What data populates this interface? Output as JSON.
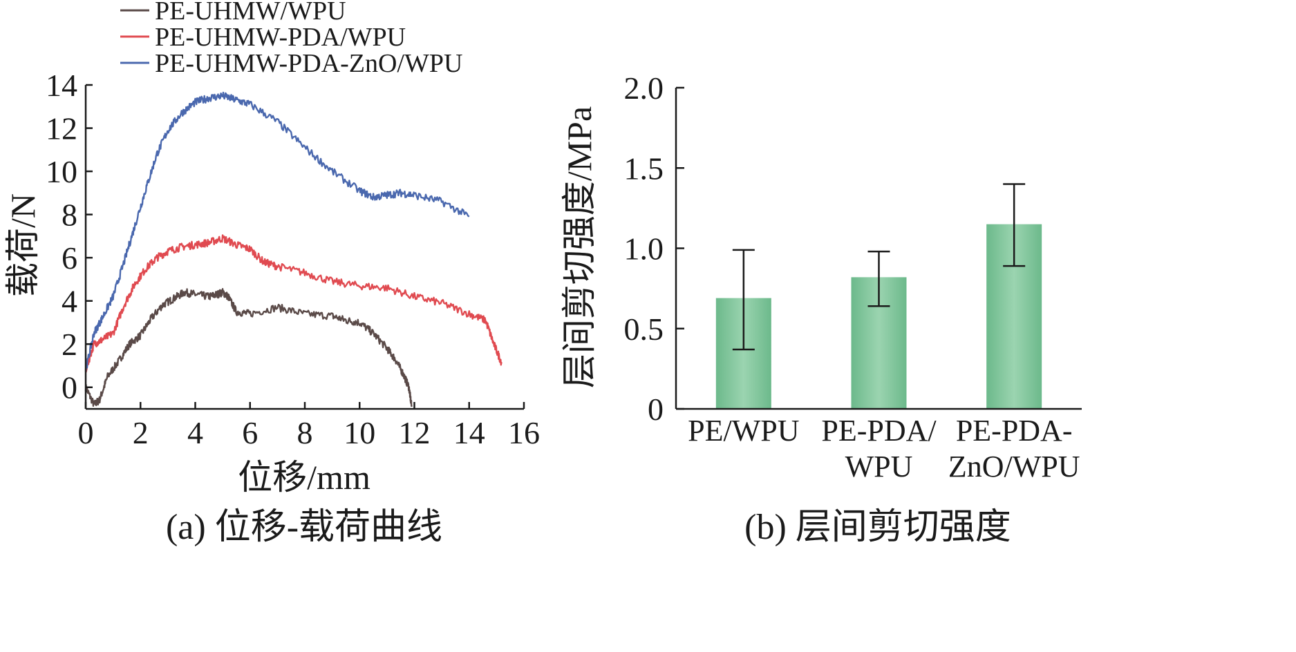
{
  "chart_data": [
    {
      "type": "line",
      "caption": "(a) 位移-载荷曲线",
      "xlabel": "位移/mm",
      "ylabel": "载荷/N",
      "xlim": [
        0,
        16
      ],
      "ylim": [
        -1,
        14
      ],
      "xticks": [
        "0",
        "2",
        "4",
        "6",
        "8",
        "10",
        "12",
        "14",
        "16"
      ],
      "yticks": [
        "0",
        "2",
        "4",
        "6",
        "8",
        "10",
        "12",
        "14"
      ],
      "legend_position": "top-left",
      "series": [
        {
          "name": "PE-UHMW/WPU",
          "color": "#5a4a48",
          "x": [
            0,
            0.3,
            0.5,
            0.8,
            1.2,
            1.6,
            2.0,
            2.4,
            2.8,
            3.2,
            3.6,
            4.0,
            4.5,
            4.8,
            5.0,
            5.2,
            5.5,
            6.0,
            7.0,
            8.0,
            9.0,
            9.5,
            10.0,
            10.5,
            11.0,
            11.3,
            11.6,
            11.8,
            11.9
          ],
          "y": [
            0,
            -0.8,
            -0.6,
            0.5,
            1.2,
            2.0,
            2.4,
            3.2,
            3.8,
            4.1,
            4.4,
            4.3,
            4.2,
            4.3,
            4.4,
            4.2,
            3.5,
            3.4,
            3.7,
            3.4,
            3.3,
            3.1,
            3.0,
            2.5,
            1.8,
            1.3,
            0.6,
            0.0,
            -0.9
          ]
        },
        {
          "name": "PE-UHMW-PDA/WPU",
          "color": "#e04a50",
          "x": [
            0,
            0.3,
            0.6,
            1.0,
            1.4,
            1.8,
            2.2,
            2.6,
            3.0,
            3.5,
            4.0,
            4.5,
            5.0,
            5.5,
            6.0,
            6.5,
            7.0,
            8.0,
            9.0,
            10.0,
            11.0,
            12.0,
            13.0,
            14.0,
            14.6,
            14.9,
            15.2
          ],
          "y": [
            0.8,
            2.0,
            2.2,
            2.5,
            3.8,
            4.8,
            5.5,
            6.0,
            6.3,
            6.5,
            6.6,
            6.7,
            6.9,
            6.6,
            6.4,
            5.8,
            5.6,
            5.3,
            4.9,
            4.7,
            4.6,
            4.2,
            3.9,
            3.4,
            3.1,
            2.0,
            1.1
          ]
        },
        {
          "name": "PE-UHMW-PDA-ZnO/WPU",
          "color": "#4a68ae",
          "x": [
            0,
            0.3,
            0.6,
            1.0,
            1.4,
            1.8,
            2.2,
            2.6,
            3.0,
            3.5,
            4.0,
            4.5,
            5.0,
            5.5,
            6.0,
            7.0,
            8.0,
            9.0,
            10.0,
            10.5,
            11.0,
            11.5,
            12.0,
            13.0,
            14.0
          ],
          "y": [
            0.8,
            2.5,
            3.2,
            4.2,
            5.8,
            7.5,
            9.2,
            10.8,
            11.9,
            12.7,
            13.2,
            13.4,
            13.5,
            13.3,
            13.1,
            12.3,
            11.1,
            10.0,
            9.1,
            8.8,
            8.9,
            9.0,
            8.9,
            8.6,
            7.9
          ]
        }
      ]
    },
    {
      "type": "bar",
      "caption": "(b) 层间剪切强度",
      "ylabel": "层间剪切强度/MPa",
      "ylim": [
        0,
        2.0
      ],
      "yticks": [
        "0",
        "0.5",
        "1.0",
        "1.5",
        "2.0"
      ],
      "categories": [
        [
          "PE/WPU"
        ],
        [
          "PE-PDA/",
          "WPU"
        ],
        [
          "PE-PDA-",
          "ZnO/WPU"
        ]
      ],
      "values": [
        0.69,
        0.82,
        1.15
      ],
      "error_low": [
        0.37,
        0.64,
        0.89
      ],
      "error_high": [
        0.99,
        0.98,
        1.4
      ],
      "bar_color": "#7dc49a"
    }
  ]
}
